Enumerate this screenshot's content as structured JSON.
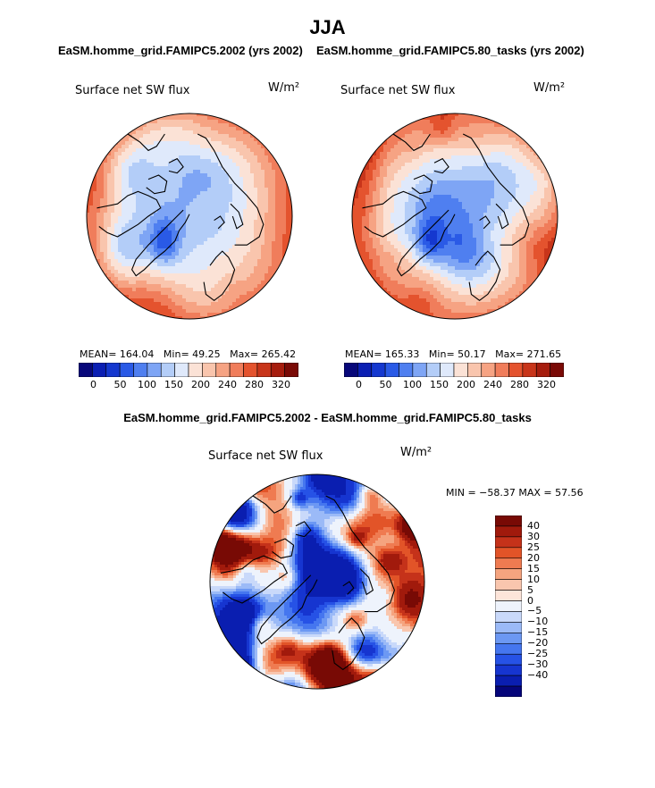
{
  "season": "JJA",
  "colors": {
    "coast": "#000000",
    "field_palette": [
      "#08087a",
      "#0b1fb3",
      "#1538cf",
      "#2a5ae6",
      "#4f7ff0",
      "#7ea5f5",
      "#b3cdf8",
      "#dfe9fb",
      "#fbe2d6",
      "#f9c5ad",
      "#f6a383",
      "#f07d5b",
      "#e4532e",
      "#c8351a",
      "#a61d0e",
      "#7a0a06"
    ],
    "diff_palette": [
      "#05057a",
      "#0a1eb0",
      "#1635d0",
      "#2652e6",
      "#4576ef",
      "#6c98f3",
      "#9bbaf7",
      "#c9d9fa",
      "#eef3fc",
      "#fde5da",
      "#f9c6ae",
      "#f5a47f",
      "#ef7b51",
      "#e25428",
      "#c5321a",
      "#a11a0c",
      "#780a05"
    ]
  },
  "chart_data": [
    {
      "type": "heatmap",
      "projection": "north-polar-stereographic",
      "title": "EaSM.homme_grid.FAMIPC5.2002 (yrs 2002)",
      "variable": "Surface net SW flux",
      "units": "W/m²",
      "stats": {
        "mean_label": "MEAN=",
        "mean": "164.04",
        "min_label": "Min=",
        "min": "49.25",
        "max_label": "Max=",
        "max": "265.42"
      },
      "colorbar_ticks": [
        "0",
        "50",
        "100",
        "150",
        "200",
        "240",
        "280",
        "320"
      ]
    },
    {
      "type": "heatmap",
      "projection": "north-polar-stereographic",
      "title": "EaSM.homme_grid.FAMIPC5.80_tasks (yrs 2002)",
      "variable": "Surface net SW flux",
      "units": "W/m²",
      "stats": {
        "mean_label": "MEAN=",
        "mean": "165.33",
        "min_label": "Min=",
        "min": "50.17",
        "max_label": "Max=",
        "max": "271.65"
      },
      "colorbar_ticks": [
        "0",
        "50",
        "100",
        "150",
        "200",
        "240",
        "280",
        "320"
      ]
    },
    {
      "type": "heatmap",
      "projection": "north-polar-stereographic",
      "title": "EaSM.homme_grid.FAMIPC5.2002 - EaSM.homme_grid.FAMIPC5.80_tasks",
      "variable": "Surface net SW flux",
      "units": "W/m²",
      "stats_text": "MIN = −58.37 MAX =  57.56",
      "colorbar_ticks": [
        "40",
        "30",
        "25",
        "20",
        "15",
        "10",
        "5",
        "0",
        "−5",
        "−10",
        "−15",
        "−20",
        "−25",
        "−30",
        "−40"
      ]
    }
  ]
}
